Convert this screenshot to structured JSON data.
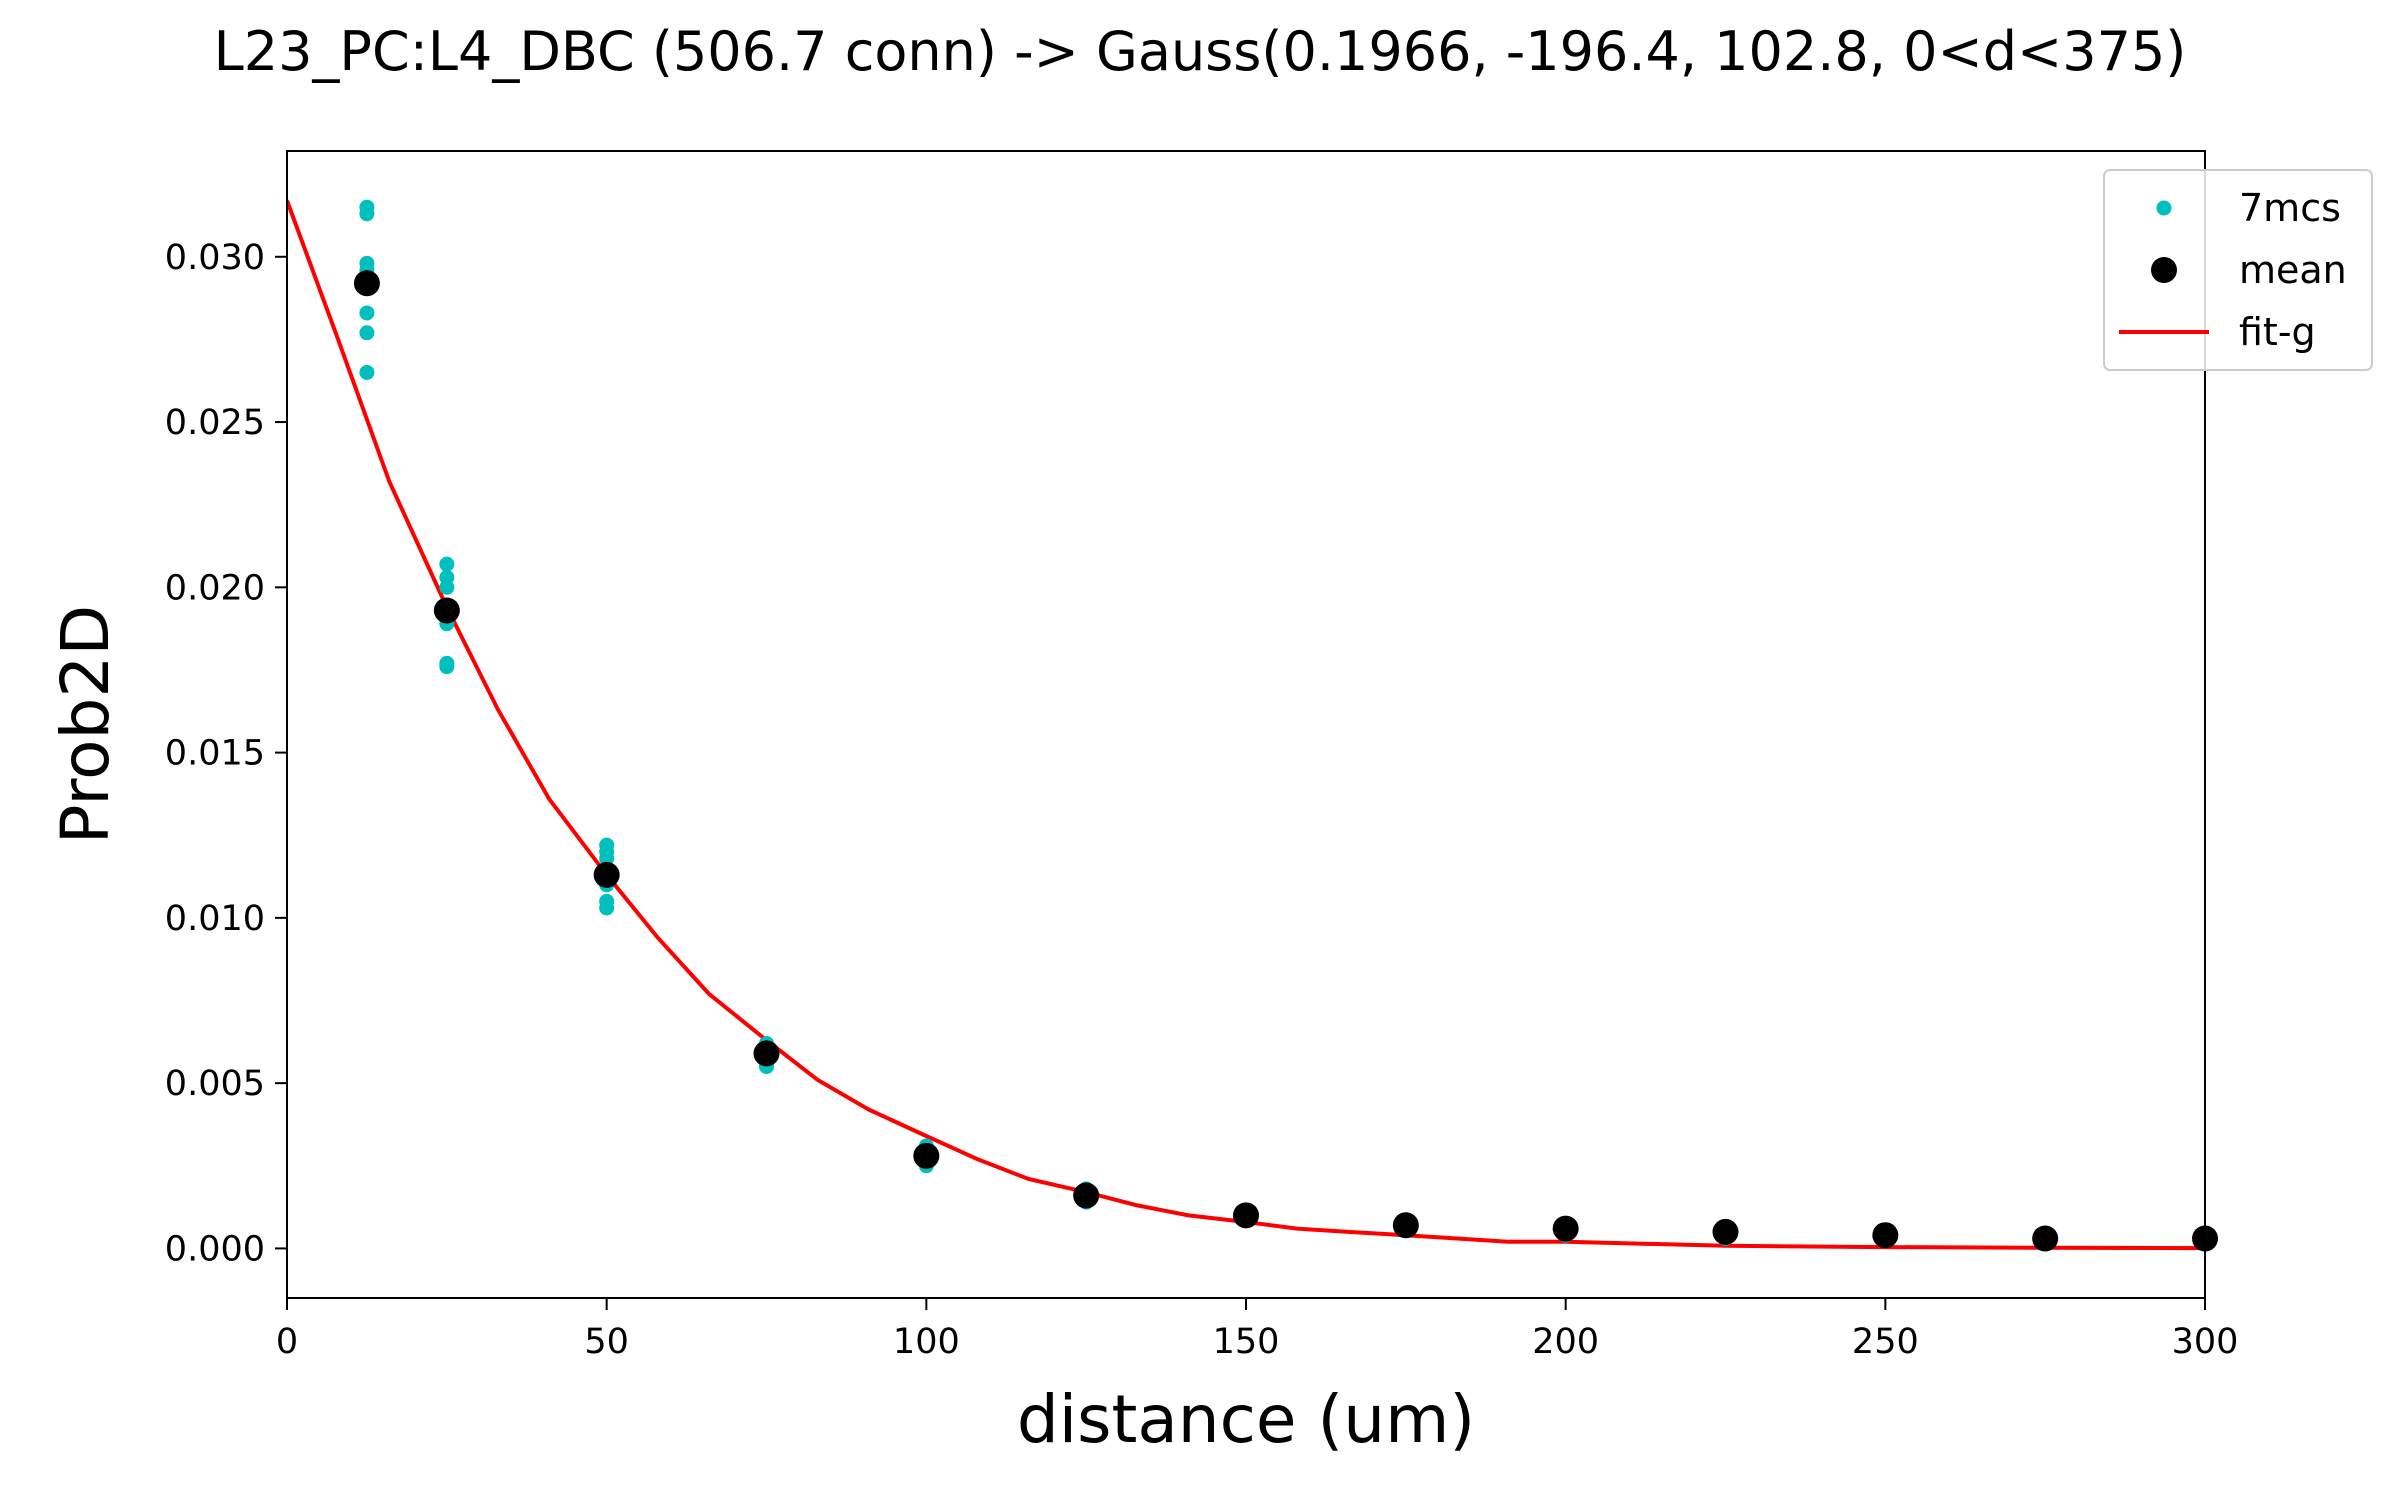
{
  "chart_data": {
    "type": "scatter",
    "title": "L23_PC:L4_DBC (506.7 conn) -> Gauss(0.1966, -196.4, 102.8, 0<d<375)",
    "xlabel": "distance (um)",
    "ylabel": "Prob2D",
    "xlim": [
      0,
      300
    ],
    "ylim": [
      -0.0015,
      0.0332
    ],
    "x_ticks": [
      0,
      50,
      100,
      150,
      200,
      250,
      300
    ],
    "y_ticks": [
      0.0,
      0.005,
      0.01,
      0.015,
      0.02,
      0.025,
      0.03
    ],
    "x_tick_labels": [
      "0",
      "50",
      "100",
      "150",
      "200",
      "250",
      "300"
    ],
    "y_tick_labels": [
      "0.000",
      "0.005",
      "0.010",
      "0.015",
      "0.020",
      "0.025",
      "0.030"
    ],
    "legend_position": "top-right",
    "grid": false,
    "series": [
      {
        "name": "7mcs",
        "kind": "points",
        "color": "#00bfbf",
        "points": [
          [
            12.5,
            0.0315
          ],
          [
            12.5,
            0.0313
          ],
          [
            12.5,
            0.0298
          ],
          [
            12.5,
            0.0296
          ],
          [
            12.5,
            0.0283
          ],
          [
            12.5,
            0.0277
          ],
          [
            12.5,
            0.0265
          ],
          [
            25,
            0.0207
          ],
          [
            25,
            0.0203
          ],
          [
            25,
            0.02
          ],
          [
            25,
            0.0193
          ],
          [
            25,
            0.0189
          ],
          [
            25,
            0.0177
          ],
          [
            25,
            0.0176
          ],
          [
            50,
            0.0122
          ],
          [
            50,
            0.012
          ],
          [
            50,
            0.0118
          ],
          [
            50,
            0.0113
          ],
          [
            50,
            0.011
          ],
          [
            50,
            0.0105
          ],
          [
            50,
            0.0103
          ],
          [
            75,
            0.0062
          ],
          [
            75,
            0.006
          ],
          [
            75,
            0.0059
          ],
          [
            75,
            0.0058
          ],
          [
            75,
            0.0057
          ],
          [
            75,
            0.0056
          ],
          [
            75,
            0.0055
          ],
          [
            100,
            0.0031
          ],
          [
            100,
            0.003
          ],
          [
            100,
            0.0029
          ],
          [
            100,
            0.0028
          ],
          [
            100,
            0.0027
          ],
          [
            100,
            0.0026
          ],
          [
            100,
            0.0025
          ],
          [
            125,
            0.0018
          ],
          [
            125,
            0.0017
          ],
          [
            125,
            0.0016
          ],
          [
            125,
            0.0016
          ],
          [
            125,
            0.0015
          ],
          [
            125,
            0.0015
          ],
          [
            125,
            0.0014
          ],
          [
            150,
            0.0011
          ],
          [
            150,
            0.0011
          ],
          [
            150,
            0.001
          ],
          [
            150,
            0.001
          ],
          [
            150,
            0.001
          ],
          [
            150,
            0.0009
          ],
          [
            150,
            0.0009
          ],
          [
            175,
            0.0008
          ],
          [
            175,
            0.0008
          ],
          [
            175,
            0.0007
          ],
          [
            175,
            0.0007
          ],
          [
            175,
            0.0007
          ],
          [
            175,
            0.0006
          ],
          [
            175,
            0.0006
          ],
          [
            200,
            0.0007
          ],
          [
            200,
            0.0006
          ],
          [
            200,
            0.0006
          ],
          [
            200,
            0.0005
          ],
          [
            200,
            0.0005
          ],
          [
            200,
            0.0005
          ],
          [
            200,
            0.0004
          ],
          [
            225,
            0.0005
          ],
          [
            225,
            0.0005
          ],
          [
            225,
            0.0004
          ],
          [
            225,
            0.0004
          ],
          [
            225,
            0.0004
          ],
          [
            225,
            0.0004
          ],
          [
            225,
            0.0003
          ],
          [
            250,
            0.0004
          ],
          [
            250,
            0.0004
          ],
          [
            250,
            0.0004
          ],
          [
            250,
            0.0003
          ],
          [
            250,
            0.0003
          ],
          [
            250,
            0.0003
          ],
          [
            250,
            0.0003
          ],
          [
            275,
            0.0004
          ],
          [
            275,
            0.0003
          ],
          [
            275,
            0.0003
          ],
          [
            275,
            0.0003
          ],
          [
            275,
            0.0003
          ],
          [
            275,
            0.0002
          ],
          [
            275,
            0.0002
          ],
          [
            300,
            0.0003
          ],
          [
            300,
            0.0003
          ],
          [
            300,
            0.0003
          ],
          [
            300,
            0.0002
          ],
          [
            300,
            0.0002
          ],
          [
            300,
            0.0002
          ],
          [
            300,
            0.0002
          ]
        ]
      },
      {
        "name": "mean",
        "kind": "points",
        "color": "#000000",
        "points": [
          [
            12.5,
            0.0292
          ],
          [
            25,
            0.0193
          ],
          [
            50,
            0.0113
          ],
          [
            75,
            0.0059
          ],
          [
            100,
            0.0028
          ],
          [
            125,
            0.0016
          ],
          [
            150,
            0.001
          ],
          [
            175,
            0.0007
          ],
          [
            200,
            0.0006
          ],
          [
            225,
            0.0005
          ],
          [
            250,
            0.0004
          ],
          [
            275,
            0.0003
          ],
          [
            300,
            0.0003
          ]
        ]
      },
      {
        "name": "fit-g",
        "kind": "line",
        "color": "#ff0000",
        "points": [
          [
            0,
            0.0317
          ],
          [
            8,
            0.0275
          ],
          [
            16,
            0.0232
          ],
          [
            25,
            0.0194
          ],
          [
            33,
            0.0163
          ],
          [
            41,
            0.0136
          ],
          [
            50,
            0.0113
          ],
          [
            58,
            0.0094
          ],
          [
            66,
            0.0077
          ],
          [
            75,
            0.0063
          ],
          [
            83,
            0.0051
          ],
          [
            91,
            0.0042
          ],
          [
            100,
            0.0034
          ],
          [
            108,
            0.0027
          ],
          [
            116,
            0.0021
          ],
          [
            125,
            0.0017
          ],
          [
            133,
            0.0013
          ],
          [
            141,
            0.001
          ],
          [
            150,
            0.0008
          ],
          [
            158,
            0.0006
          ],
          [
            166,
            0.0005
          ],
          [
            175,
            0.0004
          ],
          [
            183,
            0.0003
          ],
          [
            191,
            0.0002
          ],
          [
            200,
            0.0002
          ],
          [
            225,
            8e-05
          ],
          [
            250,
            4e-05
          ],
          [
            275,
            2e-05
          ],
          [
            300,
            1e-05
          ]
        ]
      }
    ]
  }
}
